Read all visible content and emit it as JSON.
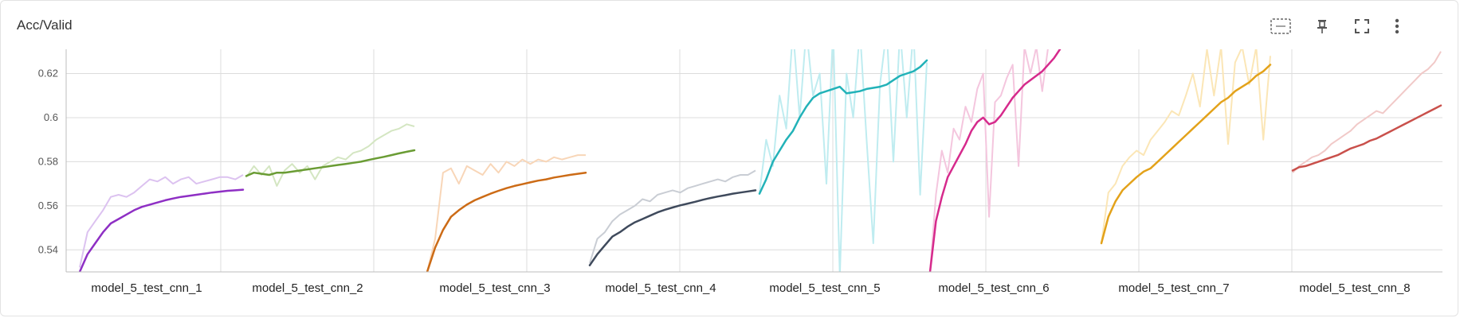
{
  "panel": {
    "title": "Acc/Valid"
  },
  "toolbar": {
    "icons": [
      "fit-domain-icon",
      "pin-icon",
      "fullscreen-icon",
      "more-vert-icon"
    ]
  },
  "chart_data": {
    "type": "line",
    "title": "Acc/Valid",
    "xlabel": "",
    "ylabel": "",
    "ylim": [
      0.53,
      0.631
    ],
    "yticks": [
      0.54,
      0.56,
      0.58,
      0.6,
      0.62
    ],
    "ytick_labels": [
      "0.54",
      "0.56",
      "0.58",
      "0.6",
      "0.62"
    ],
    "grid": true,
    "categories": [
      "model_5_test_cnn_1",
      "model_5_test_cnn_2",
      "model_5_test_cnn_3",
      "model_5_test_cnn_4",
      "model_5_test_cnn_5",
      "model_5_test_cnn_6",
      "model_5_test_cnn_7",
      "model_5_test_cnn_8"
    ],
    "series": [
      {
        "name": "model_5_test_cnn_1",
        "color": "#8e2fc4",
        "raw_color": "#dcc2f0",
        "smoothed": [
          0.53,
          0.538,
          0.543,
          0.548,
          0.552,
          0.554,
          0.556,
          0.558,
          0.5595,
          0.5605,
          0.5615,
          0.5625,
          0.5633,
          0.564,
          0.5645,
          0.565,
          0.5655,
          0.566,
          0.5664,
          0.5668,
          0.567,
          0.5673
        ],
        "raw": [
          0.532,
          0.548,
          0.553,
          0.558,
          0.564,
          0.565,
          0.564,
          0.566,
          0.569,
          0.572,
          0.571,
          0.573,
          0.57,
          0.572,
          0.573,
          0.57,
          0.571,
          0.572,
          0.573,
          0.573,
          0.572,
          0.574
        ]
      },
      {
        "name": "model_5_test_cnn_2",
        "color": "#6a9c34",
        "raw_color": "#d4e6c2",
        "smoothed": [
          0.5735,
          0.575,
          0.5745,
          0.574,
          0.575,
          0.575,
          0.5755,
          0.576,
          0.5765,
          0.577,
          0.5775,
          0.578,
          0.5785,
          0.579,
          0.5795,
          0.58,
          0.5808,
          0.5815,
          0.5822,
          0.583,
          0.5838,
          0.5845,
          0.5852
        ],
        "raw": [
          0.573,
          0.578,
          0.574,
          0.578,
          0.569,
          0.576,
          0.579,
          0.575,
          0.578,
          0.572,
          0.578,
          0.58,
          0.582,
          0.581,
          0.584,
          0.585,
          0.587,
          0.59,
          0.592,
          0.594,
          0.595,
          0.597,
          0.596
        ]
      },
      {
        "name": "model_5_test_cnn_3",
        "color": "#cc6b16",
        "raw_color": "#f8d6b8",
        "smoothed": [
          0.53,
          0.541,
          0.549,
          0.555,
          0.558,
          0.5605,
          0.5625,
          0.564,
          0.5655,
          0.5668,
          0.568,
          0.569,
          0.5698,
          0.5706,
          0.5714,
          0.572,
          0.5728,
          0.5734,
          0.574,
          0.5745,
          0.575
        ],
        "raw": [
          0.53,
          0.545,
          0.575,
          0.577,
          0.57,
          0.578,
          0.576,
          0.574,
          0.579,
          0.575,
          0.58,
          0.578,
          0.581,
          0.579,
          0.581,
          0.58,
          0.582,
          0.581,
          0.582,
          0.583,
          0.583
        ]
      },
      {
        "name": "model_5_test_cnn_4",
        "color": "#3f4a5c",
        "raw_color": "#c9cdd4",
        "smoothed": [
          0.533,
          0.538,
          0.542,
          0.546,
          0.548,
          0.5505,
          0.5525,
          0.554,
          0.5555,
          0.557,
          0.5582,
          0.5592,
          0.5602,
          0.561,
          0.5618,
          0.5627,
          0.5635,
          0.5642,
          0.5648,
          0.5655,
          0.566,
          0.5665,
          0.567
        ],
        "raw": [
          0.534,
          0.545,
          0.548,
          0.553,
          0.556,
          0.558,
          0.56,
          0.563,
          0.562,
          0.565,
          0.566,
          0.567,
          0.566,
          0.568,
          0.569,
          0.57,
          0.571,
          0.572,
          0.571,
          0.573,
          0.574,
          0.574,
          0.576
        ]
      },
      {
        "name": "model_5_test_cnn_5",
        "color": "#22b2b8",
        "raw_color": "#bfecf0",
        "smoothed": [
          0.5655,
          0.572,
          0.58,
          0.585,
          0.59,
          0.594,
          0.6,
          0.605,
          0.609,
          0.611,
          0.612,
          0.613,
          0.614,
          0.611,
          0.6115,
          0.612,
          0.613,
          0.6135,
          0.614,
          0.615,
          0.617,
          0.619,
          0.62,
          0.621,
          0.623,
          0.626
        ],
        "raw": [
          0.566,
          0.59,
          0.578,
          0.61,
          0.595,
          0.64,
          0.6,
          0.64,
          0.61,
          0.62,
          0.57,
          0.64,
          0.528,
          0.62,
          0.6,
          0.64,
          0.59,
          0.543,
          0.615,
          0.64,
          0.58,
          0.64,
          0.6,
          0.64,
          0.565,
          0.625
        ]
      },
      {
        "name": "model_5_test_cnn_6",
        "color": "#d62a8c",
        "raw_color": "#f4c6de",
        "smoothed": [
          0.53,
          0.553,
          0.564,
          0.573,
          0.578,
          0.583,
          0.588,
          0.594,
          0.598,
          0.6,
          0.597,
          0.598,
          0.601,
          0.605,
          0.609,
          0.612,
          0.615,
          0.617,
          0.619,
          0.621,
          0.624,
          0.627,
          0.631
        ],
        "raw": [
          0.53,
          0.565,
          0.585,
          0.575,
          0.595,
          0.59,
          0.605,
          0.598,
          0.613,
          0.62,
          0.555,
          0.607,
          0.61,
          0.618,
          0.624,
          0.578,
          0.632,
          0.62,
          0.632,
          0.612,
          0.632,
          0.632,
          0.632
        ]
      },
      {
        "name": "model_5_test_cnn_7",
        "color": "#e3a21a",
        "raw_color": "#fbe6b6",
        "smoothed": [
          0.543,
          0.555,
          0.562,
          0.567,
          0.57,
          0.573,
          0.5755,
          0.577,
          0.58,
          0.583,
          0.586,
          0.589,
          0.592,
          0.595,
          0.598,
          0.601,
          0.604,
          0.607,
          0.609,
          0.612,
          0.614,
          0.616,
          0.619,
          0.621,
          0.624
        ],
        "raw": [
          0.543,
          0.566,
          0.57,
          0.578,
          0.582,
          0.585,
          0.583,
          0.59,
          0.594,
          0.598,
          0.603,
          0.601,
          0.61,
          0.62,
          0.605,
          0.631,
          0.61,
          0.632,
          0.588,
          0.625,
          0.632,
          0.615,
          0.632,
          0.59,
          0.628
        ]
      },
      {
        "name": "model_5_test_cnn_8",
        "color": "#c9504b",
        "raw_color": "#f1c9c8",
        "smoothed": [
          0.576,
          0.5775,
          0.578,
          0.579,
          0.58,
          0.581,
          0.582,
          0.583,
          0.5845,
          0.586,
          0.587,
          0.588,
          0.5895,
          0.5905,
          0.592,
          0.5935,
          0.595,
          0.5965,
          0.598,
          0.5995,
          0.601,
          0.6025,
          0.604,
          0.6055
        ],
        "raw": [
          0.575,
          0.578,
          0.58,
          0.582,
          0.583,
          0.585,
          0.588,
          0.59,
          0.592,
          0.594,
          0.597,
          0.599,
          0.601,
          0.603,
          0.602,
          0.605,
          0.608,
          0.611,
          0.614,
          0.617,
          0.62,
          0.622,
          0.625,
          0.63
        ]
      }
    ]
  }
}
